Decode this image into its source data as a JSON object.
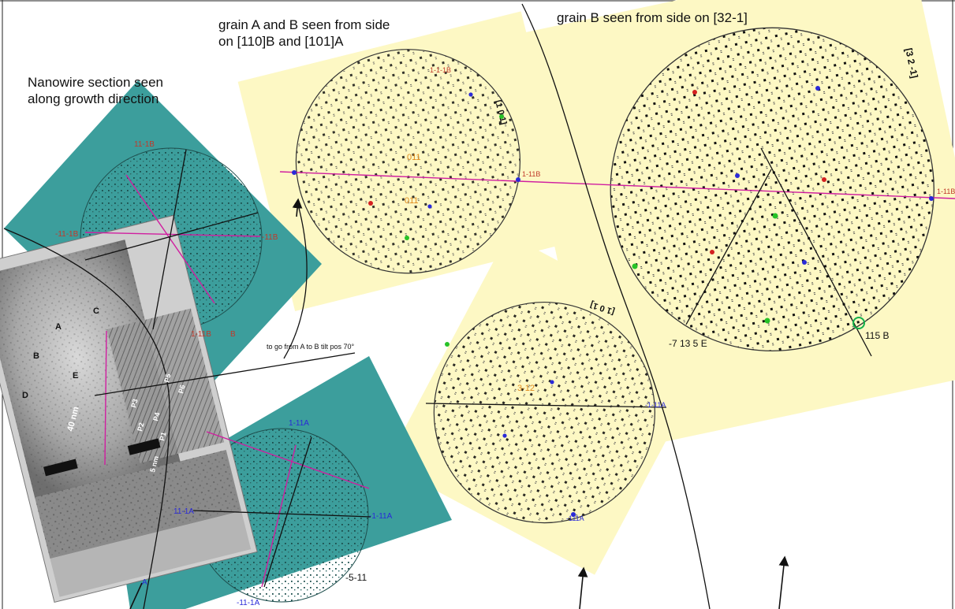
{
  "titles": {
    "section": [
      "Nanowire section seen",
      "along growth direction"
    ],
    "side_ab": [
      "grain A and B seen from side",
      "on [110]B and [101]A"
    ],
    "side_b": "grain B seen from side on [32-1]"
  },
  "annotations": {
    "tilt_note": "to go from A to B tilt pos 70°",
    "label_b": "B",
    "label_a": "A",
    "pole_7135e": "-7 13 5 E",
    "pole_115b": "115 B",
    "pole_5m11": "-5-11"
  },
  "projections": {
    "section_b": {
      "top": "11-1B",
      "left": "-11-1B",
      "right": "-11B",
      "bottom": "1-11B"
    },
    "section_a": {
      "top": "1-11A",
      "left": "11-1A",
      "right": "-1-11A",
      "bottom": "-11-1A"
    },
    "side_ab": {
      "top": "1-1-1B",
      "right": "1-11B",
      "zone": "[1 0 1]",
      "inner_1": "011",
      "inner_2": "011"
    },
    "side_b": {
      "right": "1-11B",
      "zone": "[3 2 -1]"
    },
    "side_a": {
      "right": "-1-11A",
      "bottom": "-111A",
      "zone": "[1 0 1]",
      "inner": "3-12"
    }
  },
  "micrograph": {
    "scale_labels": [
      "40 nm",
      "5 nm"
    ],
    "labels": [
      "A",
      "B",
      "C",
      "D",
      "E",
      "P1",
      "P2",
      "P3",
      "P4",
      "P5",
      "P6"
    ]
  },
  "colors": {
    "teal_panel": "#3c9e9c",
    "yellow_panel": "#fdf8c4",
    "magenta": "#d01ea0",
    "black_line": "#111111"
  }
}
